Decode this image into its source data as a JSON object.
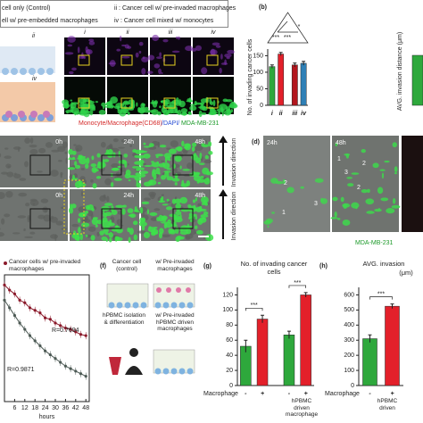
{
  "legend_box": {
    "items": [
      "cell only (Control)",
      "ii : Cancer cell w/ pre-invaded macrophages",
      "ell w/ pre-embedded macrophages",
      "iv : Cancer cell mixed w/ monocytes"
    ]
  },
  "schematic": {
    "labels": [
      "ii",
      "iv"
    ]
  },
  "panel_c": {
    "columns": [
      "i",
      "ii",
      "iii",
      "iv"
    ],
    "caption": [
      "Monocyte/Macrophage(CD68)",
      "/DAPI/",
      "MDA-MB-231"
    ]
  },
  "panel_timelapse": {
    "times": [
      "0h",
      "24h",
      "48h",
      "0h",
      "24h",
      "48h"
    ],
    "direction": [
      "Invasion direction",
      "Invasion direction"
    ]
  },
  "panel_d": {
    "label": "(d)",
    "times": [
      "24h",
      "48h"
    ],
    "markers": [
      "2",
      "1",
      "3",
      "1",
      "3",
      "2",
      "2"
    ],
    "caption": "MDA-MB-231"
  },
  "panel_f": {
    "label": "(f)",
    "texts": [
      "Cancer cell (control)",
      "w/ Pre-invaded macrophages",
      "hPBMC isolation & differentiation",
      "w/ Pre-invaded hPBMC driven macrophages"
    ]
  },
  "chart_data": [
    {
      "type": "bar",
      "label": "(b)",
      "ylabel": "No. of invading cancer cells",
      "secondary_ylabel": "AVG. invasion distance (μm)",
      "categories": [
        "i",
        "ii",
        "iii",
        "iv"
      ],
      "values": [
        117,
        155,
        122,
        127
      ],
      "errors": [
        5,
        5,
        6,
        6
      ],
      "colors": [
        "#2ea83c",
        "#e3202a",
        "#b3161d",
        "#2f80b6"
      ],
      "ylim": [
        0,
        170
      ],
      "yticks": [
        0,
        50,
        100,
        150
      ],
      "significance": [
        "***",
        "***",
        "*"
      ]
    },
    {
      "type": "line",
      "xlabel": "hours",
      "xlim": [
        0,
        50
      ],
      "xticks": [
        6,
        12,
        18,
        24,
        30,
        36,
        42,
        48
      ],
      "ylim": [
        0,
        1
      ],
      "x": [
        0,
        3,
        6,
        9,
        12,
        15,
        18,
        21,
        24,
        27,
        30,
        33,
        36,
        39,
        42,
        45,
        48
      ],
      "series": [
        {
          "name": "Cancer cells w/ pre-invaded macrophages",
          "color": "#8b1a2b",
          "values": [
            0.92,
            0.88,
            0.85,
            0.8,
            0.78,
            0.74,
            0.72,
            0.7,
            0.66,
            0.65,
            0.62,
            0.6,
            0.58,
            0.57,
            0.55,
            0.53,
            0.52
          ]
        },
        {
          "color": "#4d5a55",
          "values": [
            0.8,
            0.74,
            0.68,
            0.62,
            0.57,
            0.52,
            0.48,
            0.44,
            0.4,
            0.37,
            0.34,
            0.31,
            0.28,
            0.26,
            0.24,
            0.22,
            0.2
          ]
        }
      ],
      "annotations": [
        "R=0.7694",
        "R=0.9871"
      ]
    },
    {
      "type": "bar",
      "label": "(g)",
      "title": "No. of invading cancer cells",
      "group_labels": [
        "Macrophage",
        "hPBMC driven macrophage"
      ],
      "categories": [
        "-",
        "+",
        "-",
        "+"
      ],
      "values": [
        52,
        88,
        67,
        120
      ],
      "errors": [
        8,
        5,
        5,
        3
      ],
      "colors": [
        "#2ea83c",
        "#e3202a",
        "#2ea83c",
        "#e3202a"
      ],
      "ylim": [
        0,
        130
      ],
      "yticks": [
        0,
        20,
        40,
        60,
        80,
        100,
        120
      ],
      "significance": [
        "***",
        "***"
      ]
    },
    {
      "type": "bar",
      "label": "(h)",
      "title": "AVG. invasion",
      "unit": "(μm)",
      "group_labels": [
        "Macrophage",
        "hPBMC driven"
      ],
      "categories": [
        "-",
        "+"
      ],
      "values": [
        310,
        525
      ],
      "errors": [
        25,
        15
      ],
      "colors": [
        "#2ea83c",
        "#e3202a"
      ],
      "ylim": [
        0,
        650
      ],
      "yticks": [
        0,
        100,
        200,
        300,
        400,
        500,
        600
      ],
      "significance": [
        "***"
      ]
    }
  ]
}
